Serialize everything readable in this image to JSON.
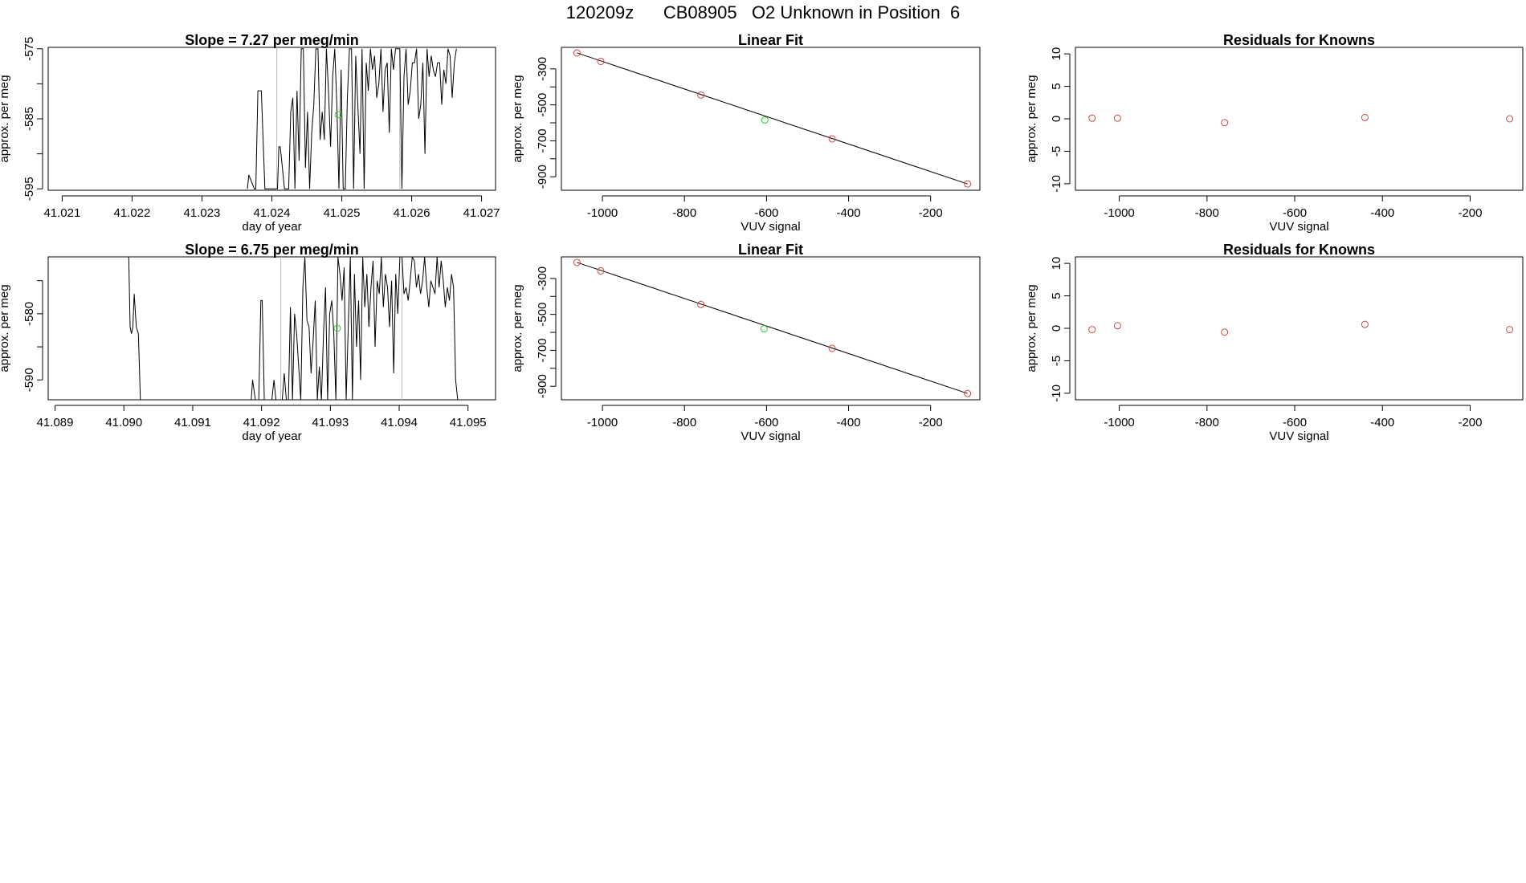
{
  "page_title": "120209z      CB08905   O2 Unknown in Position  6",
  "chart_data": [
    {
      "id": "ts1",
      "type": "line",
      "title": "Slope =  7.27  per meg/min",
      "xlabel": "day of year",
      "ylabel": "approx. per meg",
      "xlim": [
        41.0208,
        41.0272
      ],
      "ylim": [
        -595.2,
        -574.8
      ],
      "xticks": [
        "41.021",
        "41.022",
        "41.023",
        "41.024",
        "41.025",
        "41.026",
        "41.027"
      ],
      "yticks": [
        "-575",
        "-585",
        "-595"
      ],
      "yticks_minor": [
        -580,
        -590
      ],
      "vlines": [
        41.02407,
        41.02583
      ],
      "highlight_point": [
        41.02495,
        -584.4
      ],
      "highlight_color": "#22cc22",
      "x": [
        41.02365,
        41.02367,
        41.02375,
        41.02377,
        41.0238,
        41.02385,
        41.0239,
        41.02394,
        41.02398,
        41.02402,
        41.02404,
        41.02406,
        41.02408,
        41.0241,
        41.02412,
        41.02415,
        41.02418,
        41.02421,
        41.02424,
        41.02427,
        41.0243,
        41.02433,
        41.02436,
        41.02439,
        41.02442,
        41.02445,
        41.02448,
        41.02451,
        41.02454,
        41.02457,
        41.0246,
        41.02463,
        41.02466,
        41.02469,
        41.02472,
        41.02475,
        41.02478,
        41.02481,
        41.02484,
        41.02487,
        41.0249,
        41.02493,
        41.02496,
        41.02499,
        41.02502,
        41.02505,
        41.02508,
        41.02511,
        41.02514,
        41.02517,
        41.0252,
        41.02523,
        41.02526,
        41.02529,
        41.02532,
        41.02535,
        41.02538,
        41.02541,
        41.02544,
        41.02547,
        41.0255,
        41.02553,
        41.02556,
        41.02559,
        41.02562,
        41.02565,
        41.02568,
        41.02571,
        41.02574,
        41.02577,
        41.0258,
        41.02583,
        41.02586,
        41.02589,
        41.02592,
        41.02595,
        41.02598,
        41.02601,
        41.02604,
        41.02607,
        41.0261,
        41.02613,
        41.02616,
        41.02619,
        41.02622,
        41.02625,
        41.02628,
        41.02631,
        41.02634,
        41.02637,
        41.0264,
        41.02643,
        41.02646,
        41.02649,
        41.02652,
        41.02655,
        41.02658,
        41.02661,
        41.02664
      ],
      "y": [
        -595,
        -593,
        -595,
        -595,
        -581,
        -581,
        -595,
        -595,
        -595,
        -595,
        -595,
        -595,
        -595,
        -589,
        -589,
        -592,
        -595,
        -595,
        -595,
        -584,
        -582,
        -595,
        -581,
        -591,
        -575,
        -575,
        -592,
        -584,
        -595,
        -587,
        -583,
        -575,
        -575,
        -588,
        -584,
        -588,
        -575,
        -581,
        -589,
        -579,
        -575,
        -583,
        -595,
        -578,
        -595,
        -595,
        -582,
        -575,
        -575,
        -595,
        -576,
        -583,
        -590,
        -575,
        -595,
        -577,
        -581,
        -575,
        -578,
        -576,
        -582,
        -580,
        -575,
        -584,
        -578,
        -577,
        -587,
        -575,
        -578,
        -575,
        -575,
        -575,
        -595,
        -579,
        -575,
        -583,
        -581,
        -577,
        -577,
        -575,
        -585,
        -583,
        -577,
        -590,
        -575,
        -579,
        -576,
        -578,
        -579,
        -577,
        -577,
        -583,
        -578,
        -580,
        -575,
        -576,
        -582,
        -577,
        -575
      ]
    },
    {
      "id": "fit1",
      "type": "scatter",
      "title": "Linear Fit",
      "xlabel": "VUV signal",
      "ylabel": "approx. per meg",
      "xlim": [
        -1100,
        -80
      ],
      "ylim": [
        -975,
        -180
      ],
      "xticks": [
        "-1000",
        "-800",
        "-600",
        "-400",
        "-200"
      ],
      "yticks": [
        "-300",
        "-500",
        "-700",
        "-900"
      ],
      "yticks_minor": [
        -400,
        -600,
        -800
      ],
      "line": [
        [
          -1062,
          -211
        ],
        [
          -110,
          -940
        ]
      ],
      "points_x": [
        -1062,
        -1004,
        -760,
        -440,
        -110
      ],
      "points_y": [
        -211,
        -258,
        -445,
        -689,
        -940
      ],
      "point_color": "#cc4444",
      "highlight_point": [
        -604,
        -584
      ],
      "highlight_color": "#22cc22"
    },
    {
      "id": "res1",
      "type": "scatter",
      "title": "Residuals for Knowns",
      "xlabel": "VUV signal",
      "ylabel": "approx. per meg",
      "xlim": [
        -1100,
        -80
      ],
      "ylim": [
        -11,
        11
      ],
      "xticks": [
        "-1000",
        "-800",
        "-600",
        "-400",
        "-200"
      ],
      "yticks": [
        "-10",
        "-5",
        "0",
        "5",
        "10"
      ],
      "points_x": [
        -1062,
        -1004,
        -760,
        -440,
        -110
      ],
      "points_y": [
        0.1,
        0.1,
        -0.6,
        0.2,
        0.0
      ],
      "point_color": "#cc4444"
    },
    {
      "id": "ts2",
      "type": "line",
      "title": "Slope =  6.75  per meg/min",
      "xlabel": "day of year",
      "ylabel": "approx. per meg",
      "xlim": [
        41.0889,
        41.0954
      ],
      "ylim": [
        -593,
        -571.4
      ],
      "xticks": [
        "41.089",
        "41.090",
        "41.091",
        "41.092",
        "41.093",
        "41.094",
        "41.095"
      ],
      "yticks": [
        "-580",
        "-590"
      ],
      "yticks_minor": [
        -575,
        -585
      ],
      "vlines": [
        41.09228,
        41.09404
      ],
      "highlight_point": [
        41.0931,
        -582.2
      ],
      "highlight_color": "#22cc22",
      "x": [
        41.09007,
        41.09009,
        41.09011,
        41.09013,
        41.09015,
        41.09018,
        41.09021,
        41.09024,
        41.09185,
        41.09187,
        41.09191,
        41.09196,
        41.09199,
        41.09201,
        41.09204,
        41.09206,
        41.09209,
        41.09212,
        41.09215,
        41.09218,
        41.09221,
        41.09224,
        41.09227,
        41.0923,
        41.09233,
        41.09236,
        41.09239,
        41.09242,
        41.09245,
        41.09248,
        41.09251,
        41.09254,
        41.09257,
        41.0926,
        41.09263,
        41.09266,
        41.09269,
        41.09272,
        41.09275,
        41.09278,
        41.09281,
        41.09284,
        41.09287,
        41.0929,
        41.09293,
        41.09296,
        41.09299,
        41.09302,
        41.09305,
        41.09308,
        41.09311,
        41.09314,
        41.09317,
        41.0932,
        41.09323,
        41.09326,
        41.09329,
        41.09332,
        41.09335,
        41.09338,
        41.09341,
        41.09344,
        41.09347,
        41.0935,
        41.09353,
        41.09356,
        41.09359,
        41.09362,
        41.09365,
        41.09368,
        41.09371,
        41.09374,
        41.09377,
        41.0938,
        41.09383,
        41.09386,
        41.09389,
        41.09392,
        41.09395,
        41.09398,
        41.09401,
        41.09404,
        41.09407,
        41.0941,
        41.09413,
        41.09416,
        41.09419,
        41.09422,
        41.09425,
        41.09428,
        41.09431,
        41.09434,
        41.09437,
        41.0944,
        41.09443,
        41.09446,
        41.09449,
        41.09452,
        41.09455,
        41.09458,
        41.09461,
        41.09464,
        41.09467,
        41.0947,
        41.09473,
        41.09476,
        41.09479,
        41.09482,
        41.09485
      ],
      "y": [
        -571.4,
        -582,
        -583,
        -582,
        -577,
        -582,
        -583,
        -593,
        -593,
        -590,
        -593,
        -593,
        -578,
        -578,
        -593,
        -593,
        -593,
        -593,
        -593,
        -590,
        -593,
        -593,
        -593,
        -593,
        -589,
        -593,
        -593,
        -579,
        -593,
        -580,
        -583,
        -588,
        -593,
        -576,
        -571.4,
        -581,
        -582,
        -589,
        -584,
        -578,
        -593,
        -588,
        -593,
        -583,
        -576,
        -593,
        -580,
        -578,
        -583,
        -593,
        -571.4,
        -574,
        -578,
        -573,
        -593,
        -582,
        -571.4,
        -593,
        -574,
        -585,
        -578,
        -590,
        -571.4,
        -579,
        -574,
        -582,
        -576,
        -572,
        -585,
        -575,
        -577,
        -571.4,
        -579,
        -574,
        -576,
        -582,
        -575,
        -589,
        -574,
        -580,
        -571.4,
        -571.4,
        -577,
        -576,
        -578,
        -575,
        -571.4,
        -572,
        -576,
        -574,
        -577,
        -575,
        -571.4,
        -576,
        -579,
        -575,
        -576,
        -577,
        -571.4,
        -576,
        -572,
        -575,
        -579,
        -576,
        -578,
        -574,
        -576,
        -590,
        -593
      ]
    },
    {
      "id": "fit2",
      "type": "scatter",
      "title": "Linear Fit",
      "xlabel": "VUV signal",
      "ylabel": "approx. per meg",
      "xlim": [
        -1100,
        -80
      ],
      "ylim": [
        -975,
        -180
      ],
      "xticks": [
        "-1000",
        "-800",
        "-600",
        "-400",
        "-200"
      ],
      "yticks": [
        "-300",
        "-500",
        "-700",
        "-900"
      ],
      "yticks_minor": [
        -400,
        -600,
        -800
      ],
      "line": [
        [
          -1062,
          -211
        ],
        [
          -110,
          -940
        ]
      ],
      "points_x": [
        -1062,
        -1004,
        -760,
        -440,
        -110
      ],
      "points_y": [
        -211,
        -258,
        -445,
        -689,
        -940
      ],
      "point_color": "#cc4444",
      "highlight_point": [
        -606,
        -580
      ],
      "highlight_color": "#22cc22"
    },
    {
      "id": "res2",
      "type": "scatter",
      "title": "Residuals for Knowns",
      "xlabel": "VUV signal",
      "ylabel": "approx. per meg",
      "xlim": [
        -1100,
        -80
      ],
      "ylim": [
        -11,
        11
      ],
      "xticks": [
        "-1000",
        "-800",
        "-600",
        "-400",
        "-200"
      ],
      "yticks": [
        "-10",
        "-5",
        "0",
        "5",
        "10"
      ],
      "points_x": [
        -1062,
        -1004,
        -760,
        -440,
        -110
      ],
      "points_y": [
        -0.2,
        0.4,
        -0.6,
        0.6,
        -0.2
      ],
      "point_color": "#cc4444"
    }
  ]
}
